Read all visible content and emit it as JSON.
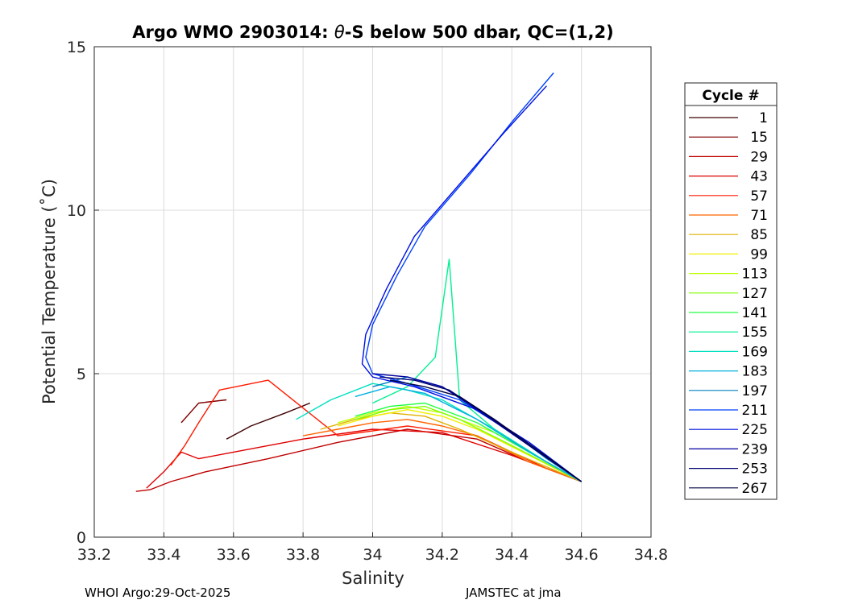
{
  "chart_data": {
    "type": "line",
    "title": "Argo WMO 2903014: θ-S below 500 dbar,  QC=(1,2)",
    "title_prefix": "Argo WMO 2903014: ",
    "title_theta": "θ",
    "title_suffix": "-S below 500 dbar,  QC=(1,2)",
    "xlabel": "Salinity",
    "ylabel": "Potential Temperature (˚C)",
    "xlim": [
      33.2,
      34.8
    ],
    "ylim": [
      0,
      15
    ],
    "x_ticks": [
      33.2,
      33.4,
      33.6,
      33.8,
      34,
      34.2,
      34.4,
      34.6,
      34.8
    ],
    "x_tick_labels": [
      "33.2",
      "33.4",
      "33.6",
      "33.8",
      "34",
      "34.2",
      "34.4",
      "34.6",
      "34.8"
    ],
    "y_ticks": [
      0,
      5,
      10,
      15
    ],
    "y_tick_labels": [
      "0",
      "5",
      "10",
      "15"
    ],
    "grid": true,
    "legend_title": "Cycle #",
    "legend_position": "right",
    "series": [
      {
        "name": "1",
        "color": "#400000",
        "x": [
          33.58,
          33.65,
          33.75,
          33.82
        ],
        "y": [
          3.0,
          3.4,
          3.8,
          4.1
        ]
      },
      {
        "name": "15",
        "color": "#800000",
        "x": [
          33.45,
          33.5,
          33.58
        ],
        "y": [
          3.5,
          4.1,
          4.2
        ]
      },
      {
        "name": "29",
        "color": "#c00000",
        "x": [
          33.32,
          33.36,
          33.42,
          33.52,
          33.7,
          33.9,
          34.1,
          34.3,
          34.45,
          34.6
        ],
        "y": [
          1.4,
          1.45,
          1.7,
          2.0,
          2.4,
          2.9,
          3.3,
          3.0,
          2.3,
          1.7
        ]
      },
      {
        "name": "43",
        "color": "#e00000",
        "x": [
          33.35,
          33.4,
          33.45,
          33.5,
          33.6,
          33.8,
          34.0,
          34.2,
          34.4,
          34.6
        ],
        "y": [
          1.5,
          2.0,
          2.6,
          2.4,
          2.6,
          3.0,
          3.3,
          3.2,
          2.5,
          1.7
        ]
      },
      {
        "name": "57",
        "color": "#ff1a00",
        "x": [
          33.42,
          33.46,
          33.5,
          33.56,
          33.7,
          33.9,
          34.1,
          34.3,
          34.5,
          34.6
        ],
        "y": [
          2.2,
          2.8,
          3.5,
          4.5,
          4.8,
          3.1,
          3.4,
          3.1,
          2.1,
          1.7
        ]
      },
      {
        "name": "71",
        "color": "#ff6600",
        "x": [
          33.8,
          33.9,
          34.0,
          34.1,
          34.2,
          34.3,
          34.45,
          34.6
        ],
        "y": [
          3.1,
          3.3,
          3.5,
          3.6,
          3.4,
          3.1,
          2.3,
          1.7
        ]
      },
      {
        "name": "85",
        "color": "#e0b000",
        "x": [
          33.85,
          33.95,
          34.05,
          34.15,
          34.25,
          34.4,
          34.6
        ],
        "y": [
          3.3,
          3.6,
          3.8,
          3.7,
          3.3,
          2.6,
          1.7
        ]
      },
      {
        "name": "99",
        "color": "#f0f000",
        "x": [
          33.9,
          34.0,
          34.1,
          34.2,
          34.3,
          34.45,
          34.6
        ],
        "y": [
          3.4,
          3.7,
          3.9,
          3.7,
          3.3,
          2.5,
          1.7
        ]
      },
      {
        "name": "113",
        "color": "#c0ff00",
        "x": [
          33.9,
          34.0,
          34.1,
          34.2,
          34.35,
          34.5,
          34.6
        ],
        "y": [
          3.5,
          3.8,
          4.0,
          3.8,
          3.2,
          2.3,
          1.7
        ]
      },
      {
        "name": "127",
        "color": "#80ff00",
        "x": [
          33.95,
          34.05,
          34.15,
          34.25,
          34.4,
          34.6
        ],
        "y": [
          3.6,
          3.9,
          4.0,
          3.6,
          2.8,
          1.7
        ]
      },
      {
        "name": "141",
        "color": "#20ff40",
        "x": [
          33.95,
          34.05,
          34.15,
          34.3,
          34.45,
          34.6
        ],
        "y": [
          3.7,
          4.0,
          4.1,
          3.5,
          2.6,
          1.7
        ]
      },
      {
        "name": "155",
        "color": "#00f090",
        "x": [
          34.0,
          34.1,
          34.18,
          34.2,
          34.22,
          34.25,
          34.35,
          34.5,
          34.6
        ],
        "y": [
          4.1,
          4.6,
          5.5,
          7.0,
          8.5,
          4.2,
          3.3,
          2.3,
          1.7
        ]
      },
      {
        "name": "169",
        "color": "#00e0c0",
        "x": [
          33.78,
          33.88,
          34.0,
          34.1,
          34.2,
          34.35,
          34.5,
          34.6
        ],
        "y": [
          3.6,
          4.2,
          4.7,
          4.5,
          4.2,
          3.3,
          2.3,
          1.7
        ]
      },
      {
        "name": "183",
        "color": "#00b0e0",
        "x": [
          33.95,
          34.05,
          34.15,
          34.3,
          34.45,
          34.6
        ],
        "y": [
          4.3,
          4.6,
          4.4,
          3.6,
          2.6,
          1.7
        ]
      },
      {
        "name": "197",
        "color": "#0080c0",
        "x": [
          34.0,
          34.1,
          34.2,
          34.35,
          34.5,
          34.6
        ],
        "y": [
          4.6,
          4.9,
          4.6,
          3.6,
          2.4,
          1.7
        ]
      },
      {
        "name": "211",
        "color": "#0040ff",
        "x": [
          34.52,
          34.4,
          34.28,
          34.15,
          34.07,
          34.0,
          33.98,
          34.0,
          34.1,
          34.25,
          34.4,
          34.6
        ],
        "y": [
          14.2,
          12.7,
          11.1,
          9.5,
          8.0,
          6.5,
          5.5,
          5.0,
          4.7,
          4.2,
          3.2,
          1.7
        ]
      },
      {
        "name": "225",
        "color": "#0010e0",
        "x": [
          34.5,
          34.38,
          34.25,
          34.12,
          34.04,
          33.98,
          33.97,
          34.0,
          34.12,
          34.3,
          34.45,
          34.6
        ],
        "y": [
          13.8,
          12.4,
          10.8,
          9.2,
          7.6,
          6.2,
          5.3,
          4.9,
          4.6,
          3.9,
          2.9,
          1.7
        ]
      },
      {
        "name": "239",
        "color": "#0000a0",
        "x": [
          34.0,
          34.1,
          34.2,
          34.3,
          34.45,
          34.6
        ],
        "y": [
          5.0,
          4.9,
          4.6,
          3.9,
          2.8,
          1.7
        ]
      },
      {
        "name": "253",
        "color": "#000070",
        "x": [
          34.02,
          34.12,
          34.22,
          34.32,
          34.45,
          34.6
        ],
        "y": [
          4.9,
          4.8,
          4.5,
          3.8,
          2.8,
          1.7
        ]
      },
      {
        "name": "267",
        "color": "#000040",
        "x": [
          34.05,
          34.15,
          34.25,
          34.35,
          34.47,
          34.6
        ],
        "y": [
          4.8,
          4.6,
          4.3,
          3.6,
          2.7,
          1.7
        ]
      }
    ]
  },
  "footer": {
    "left": "WHOI Argo:29-Oct-2025",
    "right": "JAMSTEC at jma"
  }
}
